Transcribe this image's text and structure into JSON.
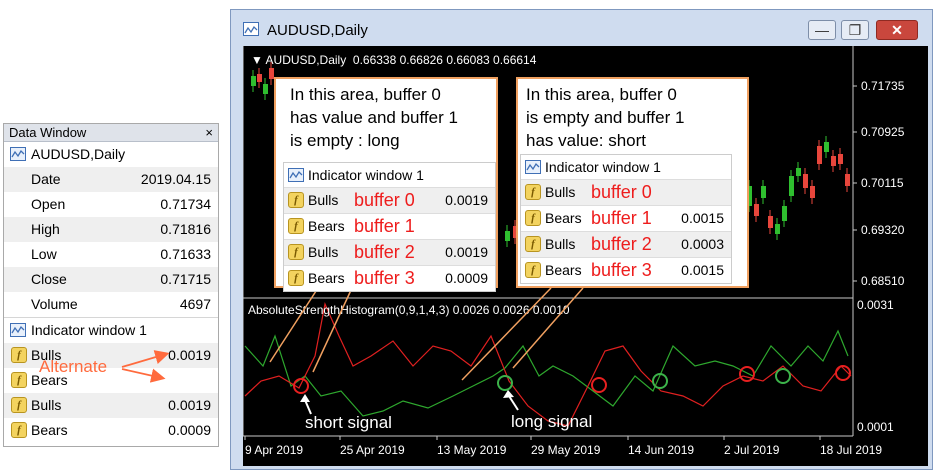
{
  "data_window": {
    "title": "Data Window",
    "close_glyph": "×",
    "symbol": "AUDUSD,Daily",
    "rows": [
      {
        "label": "Date",
        "value": "2019.04.15"
      },
      {
        "label": "Open",
        "value": "0.71734"
      },
      {
        "label": "High",
        "value": "0.71816"
      },
      {
        "label": "Low",
        "value": "0.71633"
      },
      {
        "label": "Close",
        "value": "0.71715"
      },
      {
        "label": "Volume",
        "value": "4697"
      }
    ],
    "indicator_title": "Indicator window 1",
    "buffers": [
      {
        "label": "Bulls",
        "value": "0.0019"
      },
      {
        "label": "Bears",
        "value": ""
      },
      {
        "label": "Bulls",
        "value": "0.0019"
      },
      {
        "label": "Bears",
        "value": "0.0009"
      }
    ],
    "alternate_note": "Alternate"
  },
  "window": {
    "title": "AUDUSD,Daily",
    "minimize_glyph": "—",
    "maximize_glyph": "❐",
    "close_glyph": "✕"
  },
  "chart": {
    "header": "▼ AUDUSD,Daily  0.66338 0.66826 0.66083 0.66614",
    "price_ticks": [
      "0.71735",
      "0.70925",
      "0.70115",
      "0.69320",
      "0.68510"
    ],
    "indicator_header": "AbsoluteStrengthHistogram(0,9,1,4,3) 0.0026 0.0026 0.0010",
    "indicator_ticks": [
      "0.0031",
      "0.0001"
    ],
    "date_ticks": [
      "9 Apr 2019",
      "25 Apr 2019",
      "13 May 2019",
      "29 May 2019",
      "14 Jun 2019",
      "2 Jul 2019",
      "18 Jul 2019"
    ],
    "colors": {
      "bull_candle": "#2fbf2f",
      "bear_candle": "#e8463c",
      "bulls_line": "#2ea82e",
      "bears_line": "#e02020",
      "annotation": "#f0a060"
    }
  },
  "callout_long": {
    "text_lines": [
      "In this area, buffer 0",
      "has value and buffer 1",
      "is empty : long"
    ],
    "indicator_title": "Indicator window 1",
    "rows": [
      {
        "label": "Bulls",
        "buffer": "buffer 0",
        "value": "0.0019"
      },
      {
        "label": "Bears",
        "buffer": "buffer 1",
        "value": ""
      },
      {
        "label": "Bulls",
        "buffer": "buffer 2",
        "value": "0.0019"
      },
      {
        "label": "Bears",
        "buffer": "buffer 3",
        "value": "0.0009"
      }
    ]
  },
  "callout_short": {
    "text_lines": [
      "In this area, buffer 0",
      "is empty and buffer 1",
      "has value: short"
    ],
    "indicator_title": "Indicator window 1",
    "rows": [
      {
        "label": "Bulls",
        "buffer": "buffer 0",
        "value": ""
      },
      {
        "label": "Bears",
        "buffer": "buffer 1",
        "value": "0.0015"
      },
      {
        "label": "Bulls",
        "buffer": "buffer 2",
        "value": "0.0003"
      },
      {
        "label": "Bears",
        "buffer": "buffer 3",
        "value": "0.0015"
      }
    ]
  },
  "signals": {
    "short_label": "short signal",
    "long_label": "long signal"
  }
}
